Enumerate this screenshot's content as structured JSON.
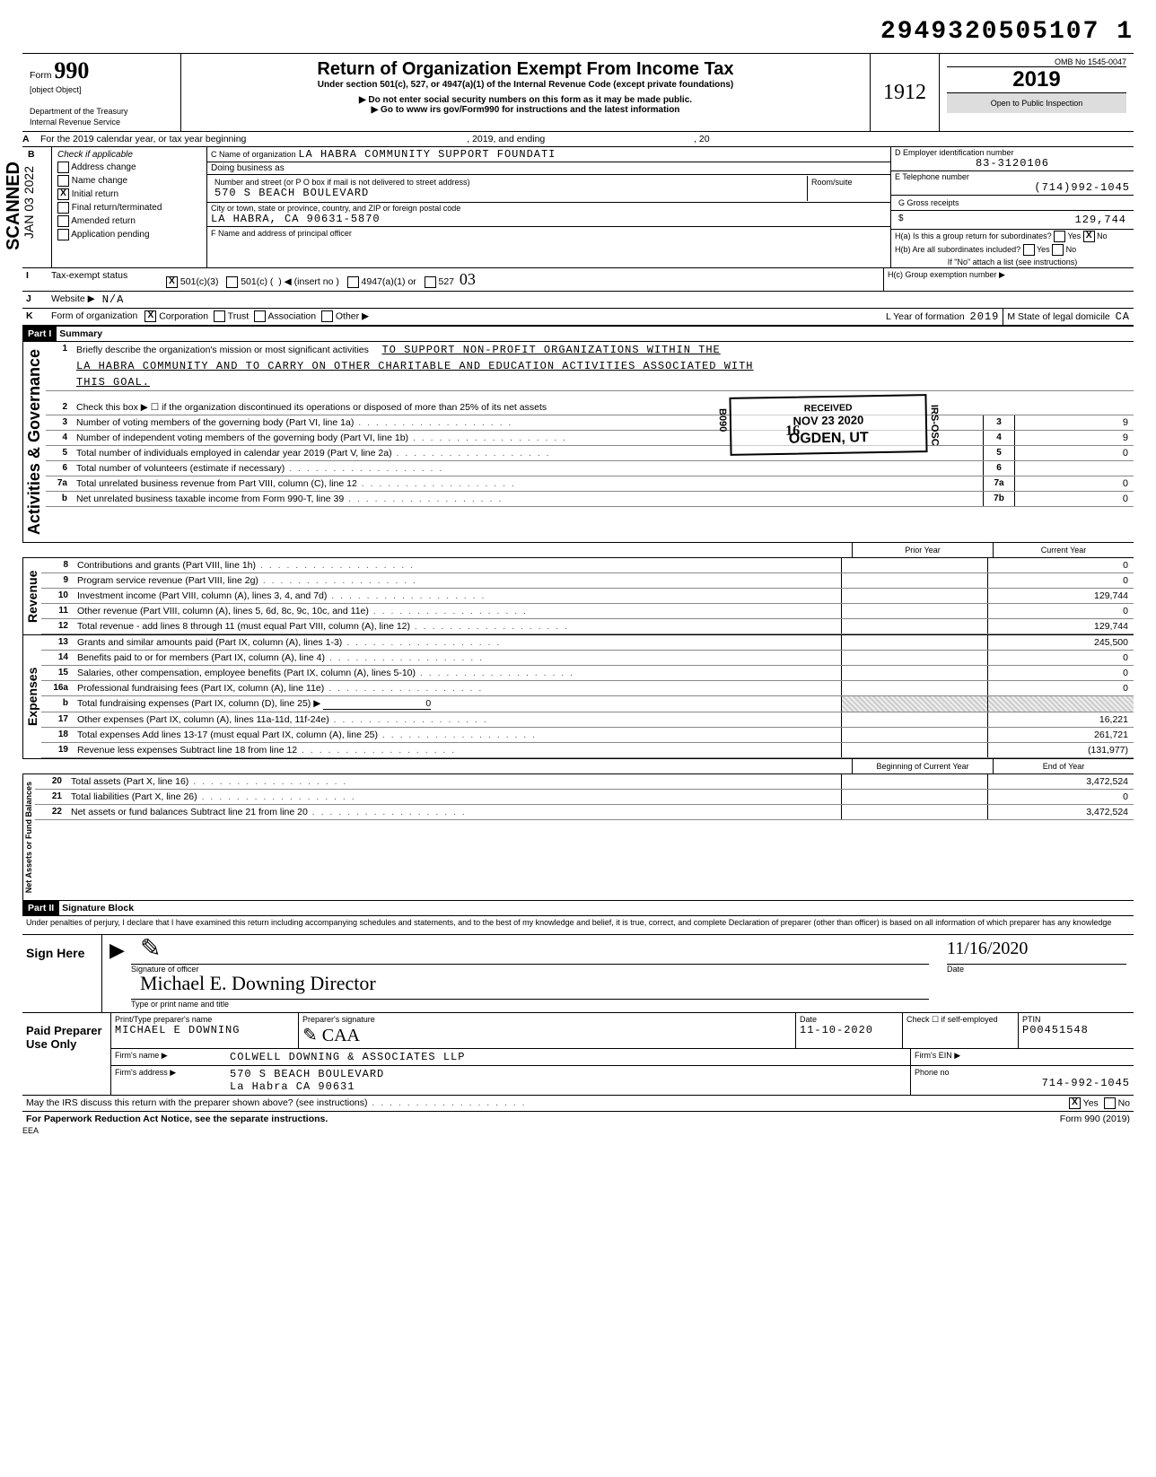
{
  "doc_id": "2949320505107 1",
  "omb": "OMB No 1545-0047",
  "form_no": "990",
  "form_label": "Form",
  "rev": {
    "8": {
      "num": "8",
      "desc": "Contributions and grants (Part VIII, line 1h)",
      "prior": "",
      "curr": "0"
    },
    "9": {
      "num": "9",
      "desc": "Program service revenue (Part VIII, line 2g)",
      "prior": "",
      "curr": "0"
    },
    "10": {
      "num": "10",
      "desc": "Investment income (Part VIII, column (A), lines 3, 4, and 7d)",
      "prior": "",
      "curr": "129,744"
    },
    "11": {
      "num": "11",
      "desc": "Other revenue (Part VIII, column (A), lines 5, 6d, 8c, 9c, 10c, and 11e)",
      "prior": "",
      "curr": "0"
    },
    "12": {
      "num": "12",
      "desc": "Total revenue - add lines 8 through 11 (must equal Part VIII, column (A), line 12)",
      "prior": "",
      "curr": "129,744"
    },
    "13": {
      "num": "13",
      "desc": "Grants and similar amounts paid (Part IX, column (A), lines 1-3)",
      "prior": "",
      "curr": "245,500"
    },
    "14": {
      "num": "14",
      "desc": "Benefits paid to or for members (Part IX, column (A), line 4)",
      "prior": "",
      "curr": "0"
    },
    "15": {
      "num": "15",
      "desc": "Salaries, other compensation, employee benefits (Part IX, column (A), lines 5-10)",
      "prior": "",
      "curr": "0"
    },
    "16a": {
      "num": "16a",
      "desc": "Professional fundraising fees (Part IX, column (A), line 11e)",
      "prior": "",
      "curr": "0"
    },
    "16b": {
      "num": "b",
      "desc": "Total fundraising expenses (Part IX, column (D), line 25)     ▶",
      "inline": "0"
    },
    "17": {
      "num": "17",
      "desc": "Other expenses (Part IX, column (A), lines 11a-11d, 11f-24e)",
      "prior": "",
      "curr": "16,221"
    },
    "18": {
      "num": "18",
      "desc": "Total expenses  Add lines 13-17 (must equal Part IX, column (A), line 25)",
      "prior": "",
      "curr": "261,721"
    },
    "19": {
      "num": "19",
      "desc": "Revenue less expenses  Subtract line 18 from line 12",
      "prior": "",
      "curr": "(131,977)"
    }
  },
  "dept": "Department of the Treasury",
  "irs": "Internal Revenue Service",
  "title": "Return of Organization Exempt From Income Tax",
  "subtitle1": "Under section 501(c), 527, or 4947(a)(1) of the Internal Revenue Code (except private foundations)",
  "subtitle2": "▶ Do not enter social security numbers on this form as it may be made public.",
  "subtitle3": "▶ Go to www irs gov/Form990 for instructions and the latest information",
  "year": "2019",
  "open": "Open to Public Inspection",
  "hand_year": "1912",
  "scanned": "SCANNED",
  "side_date": "JAN 03 2022",
  "line_a": "For the 2019 calendar year, or tax year beginning",
  "line_a_mid": ", 2019, and ending",
  "line_a_end": ", 20",
  "check_if": "Check if applicable",
  "checks": {
    "addr": "Address change",
    "name": "Name change",
    "init": "Initial return",
    "final": "Final return/terminated",
    "amend": "Amended return",
    "app": "Application pending"
  },
  "c_label": "C  Name of organization",
  "c_name": "LA HABRA COMMUNITY SUPPORT FOUNDATI",
  "dba": "Doing business as",
  "street_lbl": "Number and street (or P O  box if mail is not delivered to street address)",
  "room_lbl": "Room/suite",
  "street": "570 S BEACH BOULEVARD",
  "city_lbl": "City or town, state or province, country, and ZIP or foreign postal code",
  "city": "LA HABRA, CA 90631-5870",
  "f_lbl": "F  Name and address of principal officer",
  "d_lbl": "D   Employer identification number",
  "ein": "83-3120106",
  "e_lbl": "E   Telephone number",
  "phone": "(714)992-1045",
  "g_lbl": "G   Gross receipts",
  "g_val": "129,744",
  "g_sym": "$",
  "h_a": "H(a) Is this a group return for subordinates?",
  "h_b": "H(b) Are all subordinates included?",
  "h_note": "If \"No\" attach a list (see instructions)",
  "h_c": "H(c)   Group exemption number   ▶",
  "yes": "Yes",
  "no": "No",
  "tax_status": "Tax-exempt status",
  "s501c3": "501(c)(3)",
  "s501c": "501(c) (",
  "insert": "◀  (insert no )",
  "s4947": "4947(a)(1) or",
  "s527": "527",
  "hand03": "03",
  "website_lbl": "Website  ▶",
  "website": "N/A",
  "form_org": "Form of organization",
  "corp": "Corporation",
  "trust": "Trust",
  "assoc": "Association",
  "other": "Other ▶",
  "l_lbl": "L  Year of formation",
  "l_val": "2019",
  "m_lbl": "M  State of legal domicile",
  "m_val": "CA",
  "part1": "Part I",
  "part1_t": "Summary",
  "vlabels": {
    "gov": "Activities & Governance",
    "rev": "Revenue",
    "exp": "Expenses",
    "net": "Net Assets or\nFund Balances"
  },
  "lines": {
    "1": {
      "num": "1",
      "desc": "Briefly describe the organization's mission or most significant activities",
      "val": "TO SUPPORT NON-PROFIT ORGANIZATIONS WITHIN THE"
    },
    "1b": "LA HABRA COMMUNITY AND TO CARRY ON OTHER CHARITABLE AND EDUCATION ACTIVITIES ASSOCIATED WITH",
    "1c": "THIS GOAL.",
    "2": {
      "num": "2",
      "desc": "Check this box ▶ ☐ if the organization discontinued its operations or disposed of more than 25% of its net assets"
    },
    "3": {
      "num": "3",
      "desc": "Number of voting members of the governing body (Part VI, line 1a)",
      "box": "3",
      "val": "9"
    },
    "4": {
      "num": "4",
      "desc": "Number of independent voting members of the governing body (Part VI, line 1b)",
      "box": "4",
      "val": "9"
    },
    "5": {
      "num": "5",
      "desc": "Total number of individuals employed in calendar year 2019 (Part V, line 2a)",
      "box": "5",
      "val": "0"
    },
    "6": {
      "num": "6",
      "desc": "Total number of volunteers (estimate if necessary)",
      "box": "6",
      "val": ""
    },
    "7a": {
      "num": "7a",
      "desc": "Total unrelated business revenue from Part VIII, column (C), line 12",
      "box": "7a",
      "val": "0"
    },
    "7b": {
      "num": "b",
      "desc": "Net unrelated business taxable income from Form 990-T, line 39",
      "box": "7b",
      "val": "0"
    }
  },
  "col_hdr_prior": "Prior Year",
  "col_hdr_curr": "Current Year",
  "col_hdr_boy": "Beginning of Current Year",
  "col_hdr_eoy": "End of Year",
  "net": {
    "20": {
      "num": "20",
      "desc": "Total assets (Part X, line 16)",
      "prior": "",
      "curr": "3,472,524"
    },
    "21": {
      "num": "21",
      "desc": "Total liabilities (Part X, line 26)",
      "prior": "",
      "curr": "0"
    },
    "22": {
      "num": "22",
      "desc": "Net assets or fund balances  Subtract line 21 from line 20",
      "prior": "",
      "curr": "3,472,524"
    }
  },
  "part2": "Part II",
  "part2_t": "Signature Block",
  "perjury": "Under penalties of perjury, I declare that I have examined this return  including accompanying schedules and statements, and to the best of my knowledge and belief, it is true, correct, and complete  Declaration of preparer (other than officer) is based on all information of which preparer has any knowledge",
  "sign_here": "Sign Here",
  "sig_officer": "Signature of officer",
  "sig_date_lbl": "Date",
  "sig_date": "11/16/2020",
  "sig_name": "Michael E. Downing     Director",
  "type_name": "Type or print name and title",
  "paid": "Paid Preparer Use Only",
  "prep_name_lbl": "Print/Type preparer's name",
  "prep_name": "MICHAEL E DOWNING",
  "prep_sig_lbl": "Preparer's signature",
  "prep_date_lbl": "Date",
  "prep_date": "11-10-2020",
  "check_if2": "Check ☐ if self-employed",
  "ptin_lbl": "PTIN",
  "ptin": "P00451548",
  "firm_name_lbl": "Firm's name    ▶",
  "firm_name": "COLWELL DOWNING & ASSOCIATES LLP",
  "firm_ein_lbl": "Firm's EIN  ▶",
  "firm_addr_lbl": "Firm's address ▶",
  "firm_addr1": "570 S BEACH BOULEVARD",
  "firm_addr2": "La Habra CA 90631",
  "phone_lbl": "Phone no",
  "firm_phone": "714-992-1045",
  "discuss": "May the IRS discuss this return with the preparer shown above? (see instructions)",
  "paperwork": "For Paperwork Reduction Act Notice, see the separate instructions.",
  "eea": "EEA",
  "form_foot": "Form 990 (2019)",
  "stamps": {
    "recv": "RECEIVED",
    "date": "NOV 23 2020",
    "loc": "OGDEN, UT",
    "code": "B090",
    "irs": "IRS-OSC",
    "hand16": "16"
  },
  "i_lbl": "I",
  "j_lbl": "J",
  "k_lbl": "K",
  "b_lbl": "B",
  "a_lbl": "A"
}
